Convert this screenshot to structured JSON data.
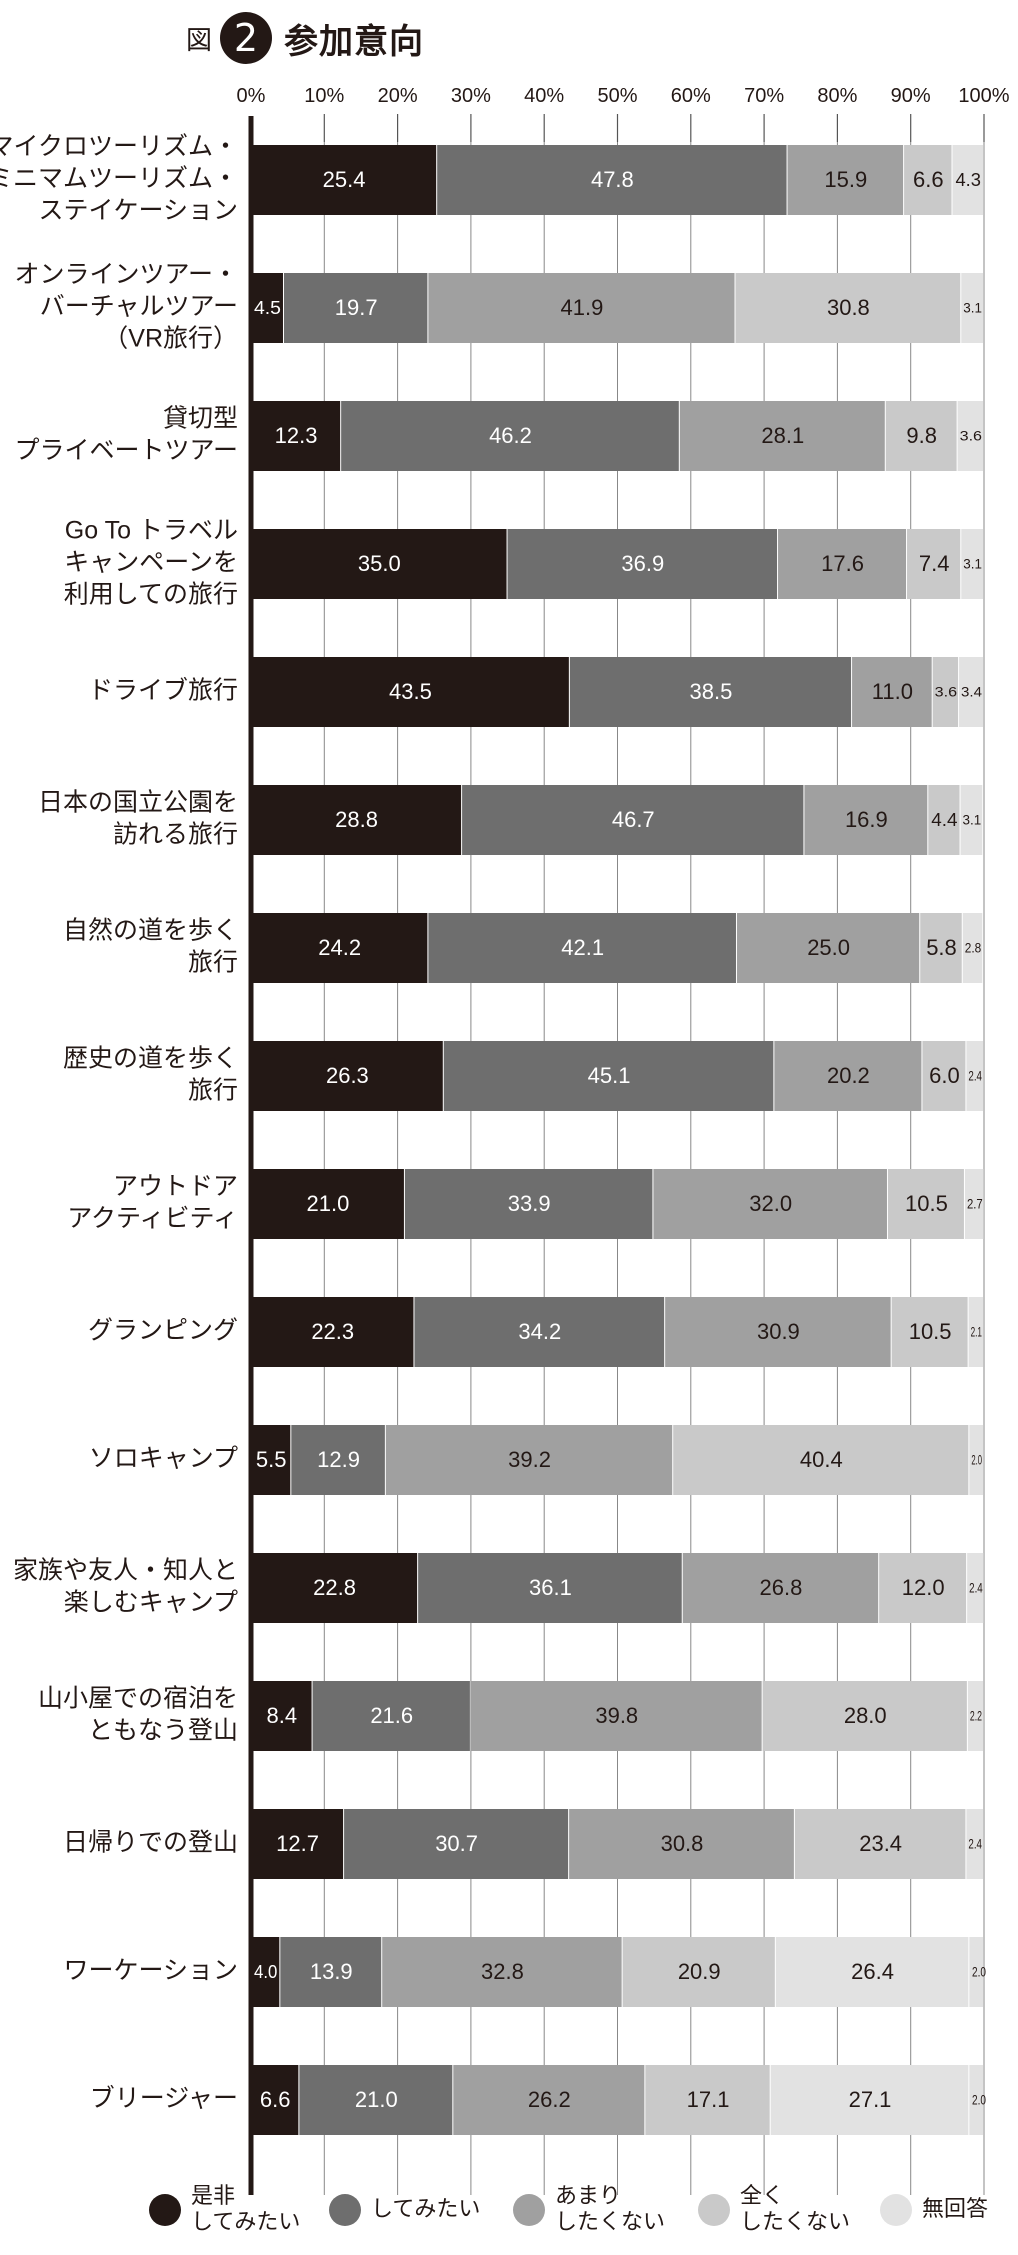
{
  "figure": {
    "prefix": "図",
    "number": "2",
    "title": "参加意向"
  },
  "chart_data": {
    "type": "bar",
    "orientation": "horizontal",
    "stacked": true,
    "percent_axis": true,
    "xlim": [
      0,
      100
    ],
    "x_ticks": [
      "0%",
      "10%",
      "20%",
      "30%",
      "40%",
      "50%",
      "60%",
      "70%",
      "80%",
      "90%",
      "100%"
    ],
    "x_tick_position": "top",
    "grid": false,
    "legend_position": "bottom",
    "categories": [
      [
        "マイクロツーリズム・",
        "ミニマムツーリズム・",
        "ステイケーション"
      ],
      [
        "オンラインツアー・",
        "バーチャルツアー",
        "（VR旅行）"
      ],
      [
        "貸切型",
        "プライベートツアー"
      ],
      [
        "Go To トラベル",
        "キャンペーンを",
        "利用しての旅行"
      ],
      [
        "ドライブ旅行"
      ],
      [
        "日本の国立公園を",
        "訪れる旅行"
      ],
      [
        "自然の道を歩く",
        "旅行"
      ],
      [
        "歴史の道を歩く",
        "旅行"
      ],
      [
        "アウトドア",
        "アクティビティ"
      ],
      [
        "グランピング"
      ],
      [
        "ソロキャンプ"
      ],
      [
        "家族や友人・知人と",
        "楽しむキャンプ"
      ],
      [
        "山小屋での宿泊を",
        "ともなう登山"
      ],
      [
        "日帰りでの登山"
      ],
      [
        "ワーケーション"
      ],
      [
        "ブリージャー"
      ]
    ],
    "series": [
      {
        "name": "是非 してみたい",
        "name_lines": [
          "是非",
          "してみたい"
        ],
        "color": "#231815",
        "values": [
          25.4,
          4.5,
          12.3,
          35.0,
          43.5,
          28.8,
          24.2,
          26.3,
          21.0,
          22.3,
          5.5,
          22.8,
          8.4,
          12.7,
          4.0,
          6.6
        ],
        "labels": [
          "25.4",
          "4.5",
          "12.3",
          "35.0",
          "43.5",
          "28.8",
          "24.2",
          "26.3",
          "21.0",
          "22.3",
          "5.5",
          "22.8",
          "8.4",
          "12.7",
          "4.0",
          "6.6"
        ]
      },
      {
        "name": "してみたい",
        "name_lines": [
          "してみたい"
        ],
        "color": "#6e6e6e",
        "values": [
          47.8,
          19.7,
          46.2,
          36.9,
          38.5,
          46.7,
          42.1,
          45.1,
          33.9,
          34.2,
          12.9,
          36.1,
          21.6,
          30.7,
          13.9,
          21.0
        ],
        "labels": [
          "47.8",
          "19.7",
          "46.2",
          "36.9",
          "38.5",
          "46.7",
          "42.1",
          "45.1",
          "33.9",
          "34.2",
          "12.9",
          "36.1",
          "21.6",
          "30.7",
          "13.9",
          "21.0"
        ]
      },
      {
        "name": "あまり したくない",
        "name_lines": [
          "あまり",
          "したくない"
        ],
        "color": "#a0a0a0",
        "values": [
          15.9,
          41.9,
          28.1,
          17.6,
          11.0,
          16.9,
          25.0,
          20.2,
          32.0,
          30.9,
          39.2,
          26.8,
          39.8,
          30.8,
          32.8,
          26.2
        ],
        "labels": [
          "15.9",
          "41.9",
          "28.1",
          "17.6",
          "11.0",
          "16.9",
          "25.0",
          "20.2",
          "32.0",
          "30.9",
          "39.2",
          "26.8",
          "39.8",
          "30.8",
          "32.8",
          "26.2"
        ]
      },
      {
        "name": "全く したくない",
        "name_lines": [
          "全く",
          "したくない"
        ],
        "color": "#c9c9c9",
        "values": [
          6.6,
          30.8,
          9.8,
          7.4,
          3.6,
          4.4,
          5.8,
          6.0,
          10.5,
          10.5,
          40.4,
          12.0,
          28.0,
          23.4,
          20.9,
          17.1
        ],
        "labels": [
          "6.6",
          "30.8",
          "9.8",
          "7.4",
          "3.6",
          "4.4",
          "5.8",
          "6.0",
          "10.5",
          "10.5",
          "40.4",
          "12.0",
          "28.0",
          "23.4",
          "20.9",
          "17.1"
        ]
      },
      {
        "name": "無回答",
        "name_lines": [
          "無回答"
        ],
        "color": "#e2e2e2",
        "values": [
          4.3,
          3.1,
          3.6,
          3.1,
          3.4,
          3.1,
          2.8,
          2.4,
          2.7,
          2.1,
          2.0,
          2.4,
          2.2,
          2.4,
          26.4,
          27.1
        ],
        "labels": [
          "4.3",
          "3.1",
          "3.6",
          "3.1",
          "3.4",
          "3.1",
          "2.8",
          "2.4",
          "2.7",
          "2.1",
          "2.0",
          "2.4",
          "2.2",
          "2.4",
          "26.4",
          "27.1"
        ]
      }
    ],
    "extra_tail_values": [
      null,
      null,
      null,
      null,
      null,
      null,
      null,
      null,
      null,
      null,
      null,
      null,
      null,
      null,
      [
        2.0
      ],
      [
        2.0
      ]
    ]
  }
}
